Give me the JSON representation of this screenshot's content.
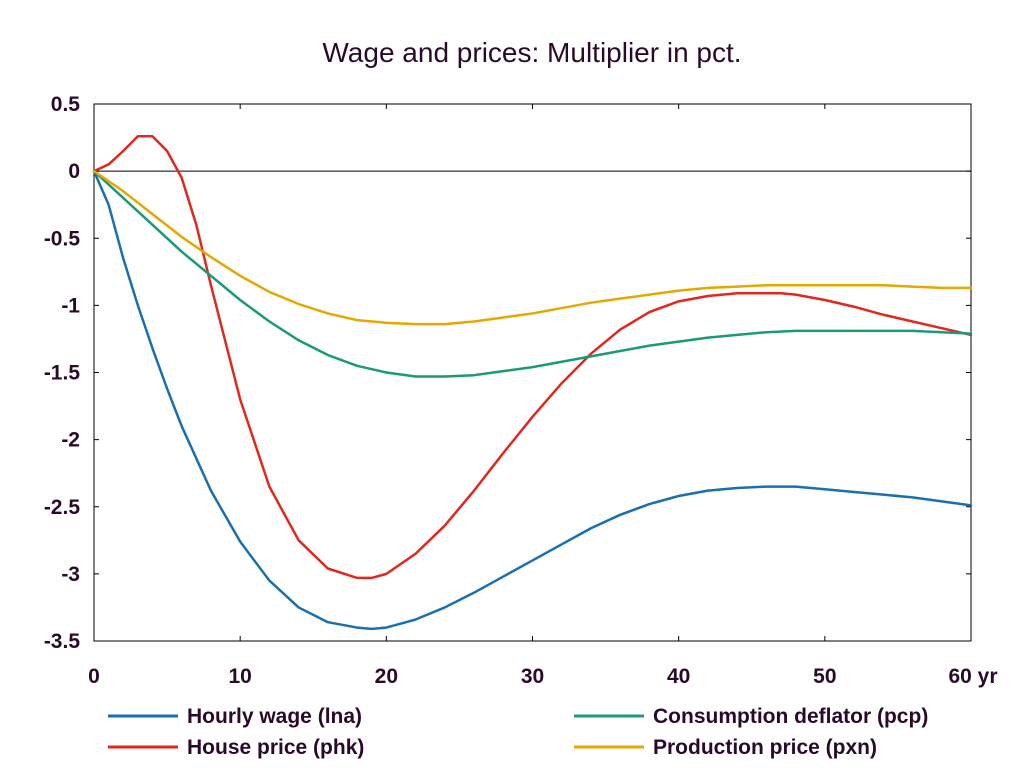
{
  "chart_data": {
    "type": "line",
    "title": "Wage and prices: Multiplier in pct.",
    "xlabel": "",
    "ylabel": "",
    "x_unit_label": "yr",
    "xlim": [
      0,
      60
    ],
    "ylim": [
      -3.5,
      0.5
    ],
    "x_ticks": [
      0,
      10,
      20,
      30,
      40,
      50,
      60
    ],
    "x_tick_labels": [
      "0",
      "10",
      "20",
      "30",
      "40",
      "50",
      "60"
    ],
    "y_ticks": [
      0.5,
      0,
      -0.5,
      -1,
      -1.5,
      -2,
      -2.5,
      -3,
      -3.5
    ],
    "y_tick_labels": [
      "0.5",
      "0",
      "-0.5",
      "-1",
      "-1.5",
      "-2",
      "-2.5",
      "-3",
      "-3.5"
    ],
    "zero_line": true,
    "grid": false,
    "legend_position": "bottom",
    "series": [
      {
        "name": "Hourly wage (lna)",
        "color": "#1a6faf",
        "x": [
          0,
          1,
          2,
          3,
          4,
          5,
          6,
          8,
          10,
          12,
          14,
          16,
          18,
          19,
          20,
          22,
          24,
          26,
          28,
          30,
          32,
          34,
          36,
          38,
          40,
          42,
          44,
          46,
          47,
          48,
          50,
          52,
          54,
          56,
          58,
          60
        ],
        "values": [
          0,
          -0.25,
          -0.65,
          -1.0,
          -1.32,
          -1.62,
          -1.9,
          -2.38,
          -2.76,
          -3.05,
          -3.25,
          -3.36,
          -3.4,
          -3.41,
          -3.4,
          -3.34,
          -3.25,
          -3.14,
          -3.02,
          -2.9,
          -2.78,
          -2.66,
          -2.56,
          -2.48,
          -2.42,
          -2.38,
          -2.36,
          -2.35,
          -2.35,
          -2.35,
          -2.37,
          -2.39,
          -2.41,
          -2.43,
          -2.46,
          -2.49
        ]
      },
      {
        "name": "House price (phk)",
        "color": "#e0281e",
        "x": [
          0,
          1,
          2,
          3,
          4,
          5,
          6,
          7,
          8,
          10,
          12,
          14,
          16,
          18,
          19,
          20,
          22,
          24,
          26,
          28,
          30,
          32,
          34,
          36,
          38,
          40,
          42,
          44,
          46,
          47,
          48,
          50,
          52,
          54,
          56,
          58,
          60
        ],
        "values": [
          0,
          0.05,
          0.15,
          0.26,
          0.26,
          0.15,
          -0.05,
          -0.4,
          -0.85,
          -1.7,
          -2.35,
          -2.75,
          -2.96,
          -3.03,
          -3.03,
          -3.0,
          -2.85,
          -2.64,
          -2.38,
          -2.1,
          -1.83,
          -1.58,
          -1.36,
          -1.18,
          -1.05,
          -0.97,
          -0.93,
          -0.91,
          -0.91,
          -0.91,
          -0.92,
          -0.96,
          -1.01,
          -1.07,
          -1.12,
          -1.17,
          -1.22
        ]
      },
      {
        "name": "Consumption deflator (pcp)",
        "color": "#1a9a78",
        "x": [
          0,
          2,
          4,
          6,
          8,
          10,
          12,
          14,
          16,
          18,
          20,
          22,
          24,
          26,
          28,
          30,
          32,
          34,
          36,
          38,
          40,
          42,
          44,
          46,
          48,
          50,
          52,
          54,
          56,
          58,
          60
        ],
        "values": [
          0,
          -0.2,
          -0.4,
          -0.6,
          -0.78,
          -0.96,
          -1.12,
          -1.26,
          -1.37,
          -1.45,
          -1.5,
          -1.53,
          -1.53,
          -1.52,
          -1.49,
          -1.46,
          -1.42,
          -1.38,
          -1.34,
          -1.3,
          -1.27,
          -1.24,
          -1.22,
          -1.2,
          -1.19,
          -1.19,
          -1.19,
          -1.19,
          -1.19,
          -1.2,
          -1.21
        ]
      },
      {
        "name": "Production price (pxn)",
        "color": "#e6a800",
        "x": [
          0,
          2,
          4,
          6,
          8,
          10,
          12,
          14,
          16,
          18,
          20,
          22,
          24,
          26,
          28,
          30,
          32,
          34,
          36,
          38,
          40,
          42,
          44,
          46,
          48,
          50,
          52,
          54,
          56,
          58,
          60
        ],
        "values": [
          0,
          -0.15,
          -0.32,
          -0.49,
          -0.64,
          -0.78,
          -0.9,
          -0.99,
          -1.06,
          -1.11,
          -1.13,
          -1.14,
          -1.14,
          -1.12,
          -1.09,
          -1.06,
          -1.02,
          -0.98,
          -0.95,
          -0.92,
          -0.89,
          -0.87,
          -0.86,
          -0.85,
          -0.85,
          -0.85,
          -0.85,
          -0.85,
          -0.86,
          -0.87,
          -0.87
        ]
      }
    ]
  }
}
